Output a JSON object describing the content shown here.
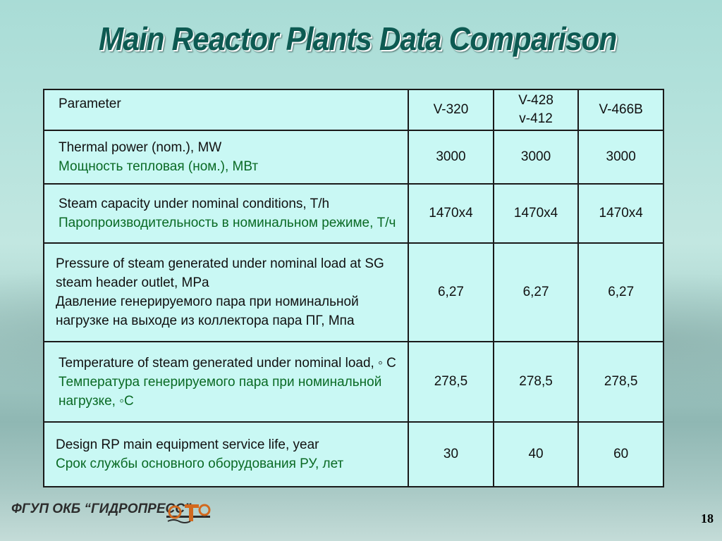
{
  "slide": {
    "title": "Main Reactor Plants Data Comparison",
    "page_number": "18",
    "footer_org": "ФГУП ОКБ “ГИДРОПРЕСС”"
  },
  "table": {
    "header": {
      "param": "Parameter",
      "col1": "V-320",
      "col2_line1": "V-428",
      "col2_line2": "v-412",
      "col3": "V-466B"
    },
    "rows": [
      {
        "en": "Thermal power (nom.), MW",
        "ru": "Мощность тепловая (ном.), МВт",
        "v1": "3000",
        "v2": "3000",
        "v3": "3000"
      },
      {
        "en": "Steam capacity under nominal conditions, T/h",
        "ru": "Паропроизводительность в номинальном режиме, Т/ч",
        "v1": "1470x4",
        "v2": "1470x4",
        "v3": "1470x4"
      },
      {
        "en": "Pressure of steam generated under nominal load at SG steam header outlet, MPa",
        "ru": "Давление генерируемого пара при номинальной нагрузке на выходе из коллектора пара ПГ, Мпа",
        "v1": "6,27",
        "v2": "6,27",
        "v3": "6,27"
      },
      {
        "en": "Temperature of steam generated under nominal load, ◦ C",
        "ru": "Температура генерируемого пара при номинальной нагрузке, ◦C",
        "v1": "278,5",
        "v2": "278,5",
        "v3": "278,5"
      },
      {
        "en": "Design RP main equipment service life, year",
        "ru": "Срок службы основного оборудования РУ, лет",
        "v1": "30",
        "v2": "40",
        "v3": "60"
      }
    ]
  },
  "colors": {
    "title": "#0d5a52",
    "cell_bg": "#c9f8f4",
    "russian_text": "#0a6a24",
    "highlight": "#d60000"
  }
}
